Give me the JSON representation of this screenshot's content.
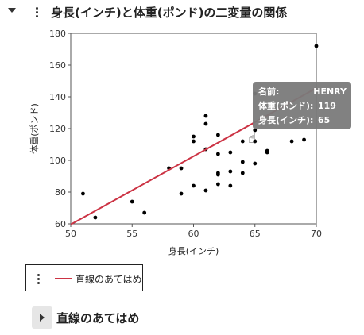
{
  "report": {
    "title": "身長(インチ)と体重(ポンド)の二変量の関係"
  },
  "chart_data": {
    "type": "scatter",
    "xlabel": "身長(インチ)",
    "ylabel": "体重(ポンド)",
    "xlim": [
      50,
      70
    ],
    "ylim": [
      60,
      180
    ],
    "xticks": [
      50,
      55,
      60,
      65,
      70
    ],
    "yticks": [
      60,
      80,
      100,
      120,
      140,
      160,
      180
    ],
    "grid": false,
    "points": [
      [
        51,
        79
      ],
      [
        52,
        64
      ],
      [
        55,
        74
      ],
      [
        56,
        67
      ],
      [
        58,
        95
      ],
      [
        59,
        95
      ],
      [
        59,
        79
      ],
      [
        60,
        112
      ],
      [
        60,
        115
      ],
      [
        60,
        84
      ],
      [
        61,
        128
      ],
      [
        61,
        123
      ],
      [
        61,
        107
      ],
      [
        61,
        81
      ],
      [
        62,
        116
      ],
      [
        62,
        104
      ],
      [
        62,
        92
      ],
      [
        62,
        91
      ],
      [
        62,
        85
      ],
      [
        63,
        105
      ],
      [
        63,
        93
      ],
      [
        63,
        84
      ],
      [
        64,
        112
      ],
      [
        64,
        99
      ],
      [
        64,
        92
      ],
      [
        65,
        142
      ],
      [
        65,
        119
      ],
      [
        65,
        112
      ],
      [
        65,
        98
      ],
      [
        66,
        106
      ],
      [
        66,
        105
      ],
      [
        68,
        112
      ],
      [
        69,
        113
      ],
      [
        70,
        172
      ]
    ],
    "fit_line": {
      "name": "直線のあてはめ",
      "color": "#cc3344",
      "x": [
        50,
        70
      ],
      "y": [
        59.6,
        145.5
      ]
    },
    "tooltip": {
      "rows": [
        {
          "label": "名前:",
          "value": "HENRY"
        },
        {
          "label": "体重(ポンド):",
          "value": "119"
        },
        {
          "label": "身長(インチ):",
          "value": "65"
        }
      ]
    }
  },
  "legend": {
    "label": "直線のあてはめ",
    "line_color": "#cc3344"
  },
  "section": {
    "title": "直線のあてはめ"
  }
}
